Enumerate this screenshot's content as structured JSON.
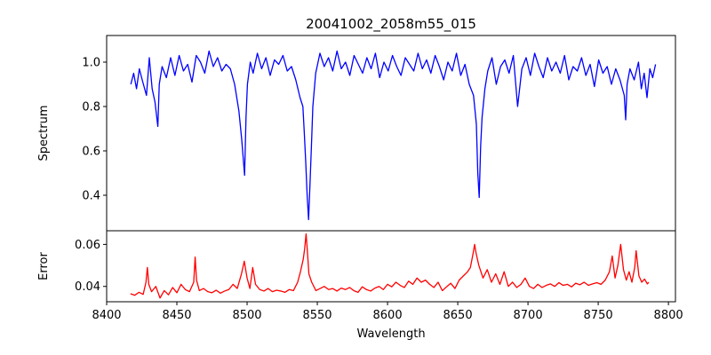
{
  "chart_data": [
    {
      "type": "line",
      "title": "20041002_2058m55_015",
      "xlabel": "",
      "ylabel": "Spectrum",
      "xlim": [
        8400,
        8800
      ],
      "ylim": [
        0.24,
        1.12
      ],
      "yticks": [
        0.4,
        0.6,
        0.8,
        1.0
      ],
      "ytick_labels": [
        "0.4",
        "0.6",
        "0.8",
        "1.0"
      ],
      "grid": false,
      "color": "#0000ff",
      "series": [
        {
          "x": [
            8417,
            8419,
            8421,
            8423,
            8425,
            8428,
            8430,
            8432,
            8434,
            8436,
            8437,
            8439,
            8442,
            8445,
            8448,
            8451,
            8454,
            8457,
            8460,
            8463,
            8466,
            8469,
            8472,
            8475,
            8478,
            8481,
            8484,
            8487,
            8490,
            8493,
            8495,
            8497,
            8498,
            8499,
            8501,
            8503,
            8506,
            8509,
            8512,
            8515,
            8518,
            8521,
            8524,
            8527,
            8530,
            8533,
            8536,
            8538,
            8539,
            8540,
            8541,
            8542,
            8543,
            8544,
            8545,
            8547,
            8550,
            8553,
            8556,
            8559,
            8562,
            8565,
            8568,
            8571,
            8574,
            8577,
            8580,
            8583,
            8586,
            8589,
            8592,
            8595,
            8598,
            8601,
            8604,
            8607,
            8610,
            8613,
            8616,
            8619,
            8622,
            8625,
            8628,
            8631,
            8634,
            8637,
            8640,
            8643,
            8646,
            8649,
            8652,
            8655,
            8658,
            8660,
            8661,
            8662,
            8663,
            8664,
            8666,
            8668,
            8671,
            8674,
            8677,
            8680,
            8683,
            8686,
            8689,
            8692,
            8695,
            8698,
            8701,
            8704,
            8707,
            8710,
            8713,
            8716,
            8719,
            8722,
            8725,
            8728,
            8731,
            8734,
            8737,
            8740,
            8743,
            8746,
            8749,
            8752,
            8755,
            8758,
            8761,
            8764,
            8765,
            8766,
            8768,
            8771,
            8774,
            8776,
            8778,
            8780,
            8782,
            8784,
            8786
          ],
          "y": [
            0.9,
            0.95,
            0.88,
            0.97,
            0.92,
            0.85,
            1.02,
            0.88,
            0.82,
            0.71,
            0.9,
            0.98,
            0.93,
            1.02,
            0.94,
            1.03,
            0.96,
            0.99,
            0.91,
            1.03,
            1.0,
            0.95,
            1.05,
            0.98,
            1.02,
            0.96,
            0.99,
            0.97,
            0.9,
            0.78,
            0.65,
            0.49,
            0.75,
            0.9,
            1.0,
            0.95,
            1.04,
            0.97,
            1.02,
            0.94,
            1.01,
            0.99,
            1.03,
            0.96,
            0.98,
            0.92,
            0.84,
            0.8,
            0.68,
            0.55,
            0.4,
            0.29,
            0.45,
            0.62,
            0.8,
            0.95,
            1.04,
            0.98,
            1.02,
            0.96,
            1.05,
            0.97,
            1.0,
            0.94,
            1.03,
            0.99,
            0.95,
            1.02,
            0.97,
            1.04,
            0.93,
            1.0,
            0.96,
            1.03,
            0.98,
            0.94,
            1.02,
            0.99,
            0.96,
            1.04,
            0.97,
            1.01,
            0.95,
            1.03,
            0.98,
            0.92,
            1.0,
            0.96,
            1.04,
            0.94,
            0.99,
            0.9,
            0.85,
            0.72,
            0.5,
            0.39,
            0.62,
            0.75,
            0.88,
            0.96,
            1.02,
            0.9,
            0.98,
            1.01,
            0.95,
            1.03,
            0.8,
            0.97,
            1.02,
            0.94,
            1.04,
            0.98,
            0.93,
            1.02,
            0.96,
            1.0,
            0.95,
            1.03,
            0.92,
            0.98,
            0.96,
            1.02,
            0.94,
            0.99,
            0.89,
            1.01,
            0.95,
            0.98,
            0.9,
            0.97,
            0.92,
            0.85,
            0.74,
            0.9,
            0.97,
            0.92,
            1.0,
            0.88,
            0.95,
            0.84,
            0.97,
            0.93,
            0.99
          ]
        }
      ]
    },
    {
      "type": "line",
      "title": "",
      "xlabel": "Wavelength",
      "ylabel": "Error",
      "xlim": [
        8400,
        8805
      ],
      "ylim": [
        0.0327,
        0.0665
      ],
      "xticks": [
        8400,
        8450,
        8500,
        8550,
        8600,
        8650,
        8700,
        8750,
        8800
      ],
      "xtick_labels": [
        "8400",
        "8450",
        "8500",
        "8550",
        "8600",
        "8650",
        "8700",
        "8750",
        "8800"
      ],
      "yticks": [
        0.04,
        0.06
      ],
      "ytick_labels": [
        "0.04",
        "0.06"
      ],
      "grid": false,
      "color": "#ff0000",
      "series": [
        {
          "x": [
            8417,
            8420,
            8423,
            8426,
            8428,
            8429,
            8430,
            8432,
            8435,
            8438,
            8441,
            8444,
            8447,
            8450,
            8453,
            8456,
            8459,
            8462,
            8463,
            8464,
            8466,
            8469,
            8472,
            8475,
            8478,
            8481,
            8484,
            8487,
            8490,
            8493,
            8496,
            8498,
            8500,
            8502,
            8504,
            8506,
            8509,
            8512,
            8515,
            8518,
            8521,
            8524,
            8527,
            8530,
            8533,
            8536,
            8538,
            8540,
            8541,
            8542,
            8543,
            8544,
            8546,
            8549,
            8552,
            8555,
            8558,
            8561,
            8564,
            8567,
            8570,
            8573,
            8576,
            8579,
            8582,
            8585,
            8588,
            8591,
            8594,
            8597,
            8600,
            8603,
            8606,
            8609,
            8612,
            8615,
            8618,
            8621,
            8624,
            8627,
            8630,
            8633,
            8636,
            8639,
            8642,
            8645,
            8648,
            8651,
            8654,
            8657,
            8659,
            8661,
            8662,
            8663,
            8665,
            8668,
            8671,
            8674,
            8677,
            8680,
            8683,
            8686,
            8689,
            8692,
            8695,
            8698,
            8701,
            8704,
            8707,
            8710,
            8713,
            8716,
            8719,
            8722,
            8725,
            8728,
            8731,
            8734,
            8737,
            8740,
            8743,
            8746,
            8749,
            8752,
            8755,
            8758,
            8760,
            8762,
            8764,
            8766,
            8768,
            8770,
            8772,
            8774,
            8776,
            8777,
            8779,
            8781,
            8783,
            8785,
            8786
          ],
          "y": [
            0.0365,
            0.0358,
            0.0372,
            0.0362,
            0.042,
            0.049,
            0.041,
            0.0375,
            0.04,
            0.0345,
            0.038,
            0.036,
            0.0395,
            0.037,
            0.041,
            0.0385,
            0.0375,
            0.042,
            0.054,
            0.043,
            0.038,
            0.039,
            0.0375,
            0.037,
            0.0382,
            0.0368,
            0.0378,
            0.0385,
            0.041,
            0.039,
            0.046,
            0.052,
            0.044,
            0.039,
            0.049,
            0.041,
            0.0385,
            0.0378,
            0.039,
            0.0375,
            0.0382,
            0.0378,
            0.0372,
            0.0385,
            0.038,
            0.042,
            0.047,
            0.053,
            0.058,
            0.065,
            0.056,
            0.046,
            0.042,
            0.038,
            0.039,
            0.04,
            0.0385,
            0.039,
            0.0378,
            0.0392,
            0.0385,
            0.0395,
            0.038,
            0.0372,
            0.0398,
            0.0385,
            0.0378,
            0.0392,
            0.04,
            0.0385,
            0.041,
            0.0398,
            0.042,
            0.0405,
            0.0395,
            0.0425,
            0.041,
            0.044,
            0.042,
            0.043,
            0.041,
            0.0395,
            0.042,
            0.038,
            0.0398,
            0.0415,
            0.039,
            0.043,
            0.045,
            0.047,
            0.049,
            0.056,
            0.06,
            0.056,
            0.05,
            0.044,
            0.048,
            0.042,
            0.046,
            0.041,
            0.047,
            0.04,
            0.042,
            0.0395,
            0.041,
            0.044,
            0.04,
            0.039,
            0.041,
            0.0395,
            0.0405,
            0.0412,
            0.04,
            0.0418,
            0.0405,
            0.041,
            0.0398,
            0.0415,
            0.0408,
            0.042,
            0.0405,
            0.0412,
            0.0418,
            0.041,
            0.043,
            0.047,
            0.0545,
            0.044,
            0.05,
            0.06,
            0.048,
            0.043,
            0.047,
            0.042,
            0.049,
            0.057,
            0.045,
            0.042,
            0.0435,
            0.0412,
            0.042
          ]
        }
      ]
    }
  ]
}
